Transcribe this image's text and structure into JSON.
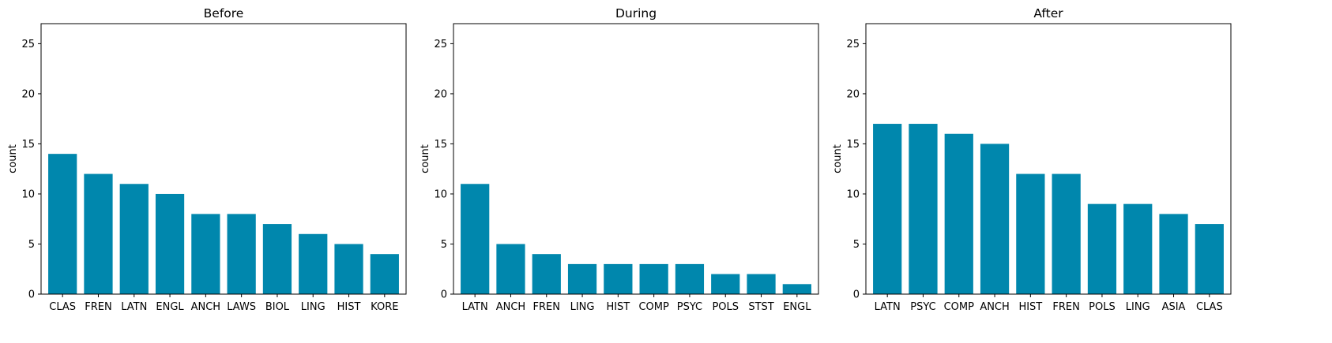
{
  "chart_data": [
    {
      "type": "bar",
      "title": "Before",
      "xlabel": "",
      "ylabel": "count",
      "ylim": [
        0,
        27
      ],
      "yticks": [
        0,
        5,
        10,
        15,
        20,
        25
      ],
      "categories": [
        "CLAS",
        "FREN",
        "LATN",
        "ENGL",
        "ANCH",
        "LAWS",
        "BIOL",
        "LING",
        "HIST",
        "KORE"
      ],
      "values": [
        14,
        12,
        11,
        10,
        8,
        8,
        7,
        6,
        5,
        4
      ],
      "bar_color": "#0087ad",
      "grid": false,
      "legend": "none"
    },
    {
      "type": "bar",
      "title": "During",
      "xlabel": "",
      "ylabel": "count",
      "ylim": [
        0,
        27
      ],
      "yticks": [
        0,
        5,
        10,
        15,
        20,
        25
      ],
      "categories": [
        "LATN",
        "ANCH",
        "FREN",
        "LING",
        "HIST",
        "COMP",
        "PSYC",
        "POLS",
        "STST",
        "ENGL"
      ],
      "values": [
        11,
        5,
        4,
        3,
        3,
        3,
        3,
        2,
        2,
        1
      ],
      "bar_color": "#0087ad",
      "grid": false,
      "legend": "none"
    },
    {
      "type": "bar",
      "title": "After",
      "xlabel": "",
      "ylabel": "count",
      "ylim": [
        0,
        27
      ],
      "yticks": [
        0,
        5,
        10,
        15,
        20,
        25
      ],
      "categories": [
        "LATN",
        "PSYC",
        "COMP",
        "ANCH",
        "HIST",
        "FREN",
        "POLS",
        "LING",
        "ASIA",
        "CLAS"
      ],
      "values": [
        17,
        17,
        16,
        15,
        12,
        12,
        9,
        9,
        8,
        7
      ],
      "bar_color": "#0087ad",
      "grid": false,
      "legend": "none"
    }
  ]
}
